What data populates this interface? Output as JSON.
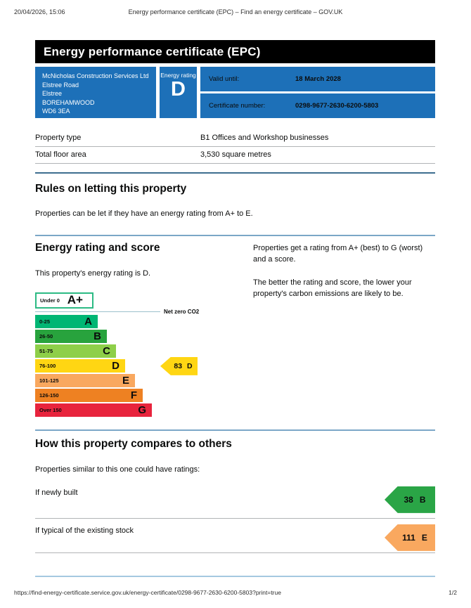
{
  "print_header": {
    "datetime": "20/04/2026, 15:06",
    "title": "Energy performance certificate (EPC) – Find an energy certificate – GOV.UK"
  },
  "banner": {
    "title": "Energy performance certificate (EPC)"
  },
  "certificate": {
    "address_lines": [
      "McNicholas Construction Services Ltd",
      "Elstree Road",
      "Elstree",
      "BOREHAMWOOD",
      "WD6 3EA"
    ],
    "energy_rating_label": "Energy rating",
    "energy_rating": "D",
    "valid_until_label": "Valid until:",
    "valid_until": "18 March 2028",
    "certificate_number_label": "Certificate number:",
    "certificate_number": "0298-9677-2630-6200-5803",
    "panel_color": "#1d70b8"
  },
  "property_details": {
    "rows": [
      {
        "label": "Property type",
        "value": "B1 Offices and Workshop businesses"
      },
      {
        "label": "Total floor area",
        "value": "3,530 square metres"
      }
    ]
  },
  "rules_section": {
    "heading": "Rules on letting this property",
    "body": "Properties can be let if they have an energy rating from A+ to E."
  },
  "rating_section": {
    "heading": "Energy rating and score",
    "intro": "This property's energy rating is D.",
    "info_paragraph_1": "Properties get a rating from A+ (best) to G (worst) and a score.",
    "info_paragraph_2": "The better the rating and score, the lower your property's carbon emissions are likely to be."
  },
  "chart_data": {
    "type": "bar",
    "orientation": "horizontal",
    "title": "Energy rating and score",
    "net_zero_label": "Net zero CO2",
    "bands": [
      {
        "range": "Under 0",
        "letter": "A+",
        "fill": "#ffffff",
        "border": "#2cba84"
      },
      {
        "range": "0-25",
        "letter": "A",
        "fill": "#00b674"
      },
      {
        "range": "26-50",
        "letter": "B",
        "fill": "#28a33d"
      },
      {
        "range": "51-75",
        "letter": "C",
        "fill": "#8ecf49"
      },
      {
        "range": "76-100",
        "letter": "D",
        "fill": "#ffd613"
      },
      {
        "range": "101-125",
        "letter": "E",
        "fill": "#f9a85f"
      },
      {
        "range": "126-150",
        "letter": "F",
        "fill": "#ee8122"
      },
      {
        "range": "Over 150",
        "letter": "G",
        "fill": "#e8243d"
      }
    ],
    "current_rating": {
      "score": "83",
      "band": "D",
      "color": "#ffd613"
    }
  },
  "compare_section": {
    "heading": "How this property compares to others",
    "intro": "Properties similar to this one could have ratings:",
    "rows": [
      {
        "label": "If newly built",
        "score": "38",
        "band": "B",
        "color": "#2aa546"
      },
      {
        "label": "If typical of the existing stock",
        "score": "111",
        "band": "E",
        "color": "#f9a85f"
      }
    ]
  },
  "footer": {
    "url": "https://find-energy-certificate.service.gov.uk/energy-certificate/0298-9677-2630-6200-5803?print=true",
    "page": "1/2"
  }
}
